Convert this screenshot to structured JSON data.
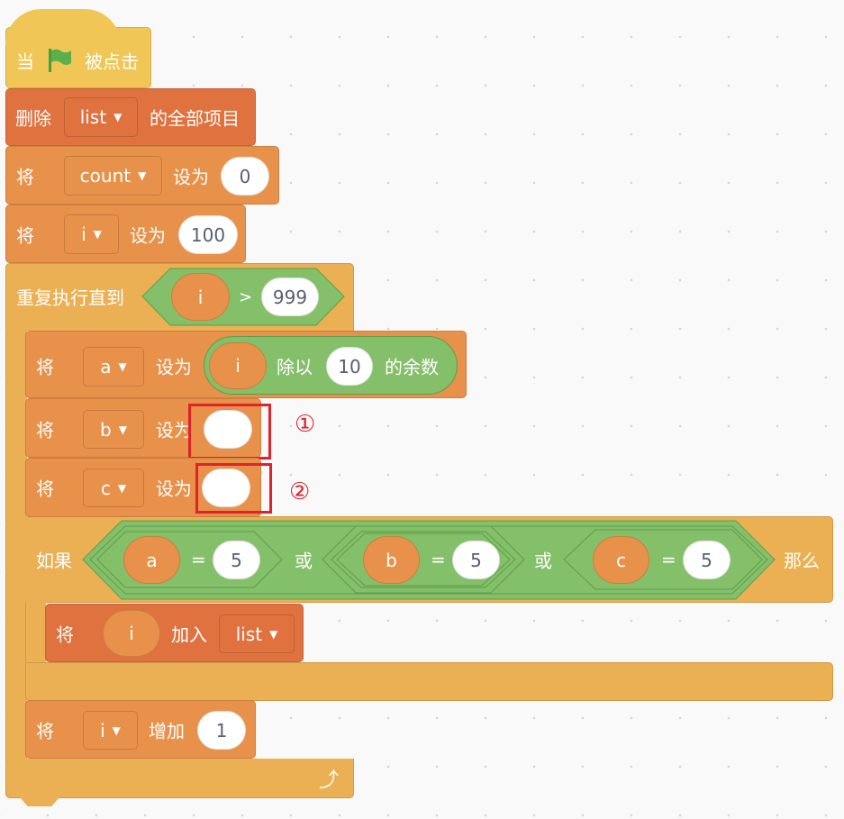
{
  "colors": {
    "event": "#f0c757",
    "list": "#e07240",
    "variable": "#e8914a",
    "control": "#ebb053",
    "operator": "#84bf6a",
    "annotation": "#e0222a"
  },
  "hat": {
    "prefix": "当",
    "icon": "green-flag-icon",
    "suffix": "被点击"
  },
  "delete_all": {
    "label": "删除",
    "list": "list",
    "suffix": "的全部项目"
  },
  "set_count": {
    "label": "将",
    "var": "count",
    "mid": "设为",
    "value": "0"
  },
  "set_i": {
    "label": "将",
    "var": "i",
    "mid": "设为",
    "value": "100"
  },
  "repeat_until": {
    "label": "重复执行直到",
    "left": "i",
    "op": ">",
    "right": "999",
    "icon": "loop-arrow-icon"
  },
  "set_a": {
    "label": "将",
    "var": "a",
    "mid": "设为",
    "mod_left": "i",
    "mod_op": "除以",
    "mod_right": "10",
    "mod_suffix": "的余数"
  },
  "set_b": {
    "label": "将",
    "var": "b",
    "mid": "设为",
    "value": "",
    "marker": "①"
  },
  "set_c": {
    "label": "将",
    "var": "c",
    "mid": "设为",
    "value": "",
    "marker": "②"
  },
  "if_block": {
    "label": "如果",
    "then": "那么",
    "or1": "或",
    "or2": "或",
    "cond": [
      {
        "left": "a",
        "op": "=",
        "right": "5"
      },
      {
        "left": "b",
        "op": "=",
        "right": "5"
      },
      {
        "left": "c",
        "op": "=",
        "right": "5"
      }
    ]
  },
  "add_to_list": {
    "label": "将",
    "item": "i",
    "mid": "加入",
    "list": "list"
  },
  "change_i": {
    "label": "将",
    "var": "i",
    "mid": "增加",
    "value": "1"
  },
  "dropdown_caret": "▼"
}
